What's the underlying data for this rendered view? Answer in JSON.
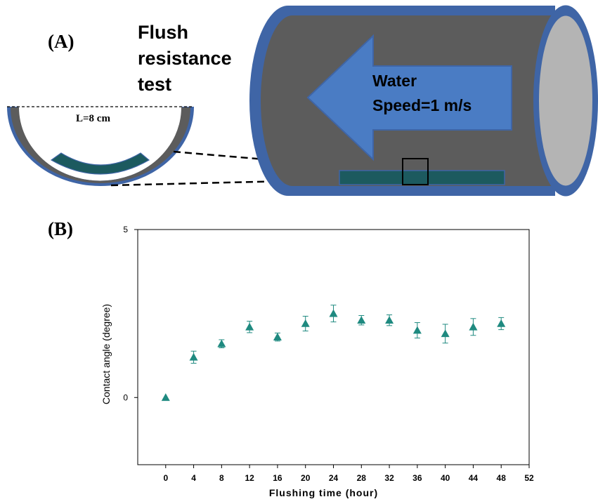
{
  "panel_a": {
    "label": "(A)",
    "title_lines": [
      "Flush",
      "resistance",
      "test"
    ],
    "length_label": "L=8 cm",
    "water_lines": [
      "Water",
      "Speed=1 m/s"
    ]
  },
  "panel_b": {
    "label": "(B)"
  },
  "colors": {
    "pipe_blue": "#3f65a6",
    "pipe_gray": "#5c5c5c",
    "pipe_end": "#b4b4b4",
    "arrow_blue": "#4a7cc4",
    "sample_teal": "#1c5a5f",
    "marker_teal": "#1f8a80"
  },
  "chart_data": {
    "type": "scatter",
    "xlabel": "Flushing time (hour)",
    "ylabel": "Contact angle (degree)",
    "xlim": [
      -4,
      52
    ],
    "ylim": [
      -2,
      5
    ],
    "x_ticks": [
      0,
      4,
      8,
      12,
      16,
      20,
      24,
      28,
      32,
      36,
      40,
      44,
      48,
      52
    ],
    "y_tick_labels": [
      0,
      5
    ],
    "grid": false,
    "series": [
      {
        "marker": "triangle",
        "points": [
          {
            "x": 0,
            "y": 0.0,
            "err": 0.0
          },
          {
            "x": 4,
            "y": 1.2,
            "err": 0.18
          },
          {
            "x": 8,
            "y": 1.6,
            "err": 0.12
          },
          {
            "x": 12,
            "y": 2.1,
            "err": 0.17
          },
          {
            "x": 16,
            "y": 1.8,
            "err": 0.12
          },
          {
            "x": 20,
            "y": 2.2,
            "err": 0.22
          },
          {
            "x": 24,
            "y": 2.5,
            "err": 0.25
          },
          {
            "x": 28,
            "y": 2.3,
            "err": 0.14
          },
          {
            "x": 32,
            "y": 2.3,
            "err": 0.16
          },
          {
            "x": 36,
            "y": 2.0,
            "err": 0.23
          },
          {
            "x": 40,
            "y": 1.9,
            "err": 0.28
          },
          {
            "x": 44,
            "y": 2.1,
            "err": 0.25
          },
          {
            "x": 48,
            "y": 2.2,
            "err": 0.18
          }
        ]
      }
    ]
  }
}
